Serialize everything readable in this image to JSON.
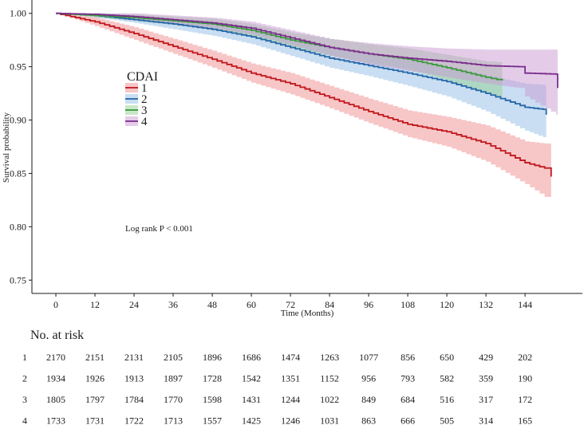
{
  "chart_data": {
    "type": "line",
    "xlabel": "Time (Months)",
    "ylabel": "Survival probability",
    "xlim": [
      -7.35,
      161.6
    ],
    "ylim": [
      0.7375,
      1.0125
    ],
    "xticks": [
      0,
      12,
      24,
      36,
      48,
      60,
      72,
      84,
      96,
      108,
      120,
      132,
      144
    ],
    "xtick_labels": [
      "0",
      "12",
      "24",
      "36",
      "48",
      "60",
      "72",
      "84",
      "96",
      "108",
      "120",
      "132",
      "144"
    ],
    "yticks": [
      0.75,
      0.8,
      0.85,
      0.9,
      0.95,
      1.0
    ],
    "ytick_labels": [
      "0.75",
      "0.80",
      "0.85",
      "0.90",
      "0.95",
      "1.00"
    ],
    "legend": {
      "title": "CDAI"
    },
    "annotation": "Log rank P < 0.001",
    "series": [
      {
        "name": "1",
        "color": "#c0171c",
        "band_color": "#ef8d90",
        "time": [
          0,
          12,
          24,
          36,
          48,
          60,
          72,
          84,
          96,
          108,
          120,
          132,
          144,
          150,
          152
        ],
        "survival": [
          1.0,
          0.992,
          0.981,
          0.969,
          0.957,
          0.944,
          0.934,
          0.921,
          0.908,
          0.896,
          0.889,
          0.878,
          0.86,
          0.855,
          0.847
        ],
        "lower": [
          1.0,
          0.988,
          0.975,
          0.962,
          0.949,
          0.935,
          0.924,
          0.911,
          0.897,
          0.884,
          0.875,
          0.861,
          0.84,
          0.828,
          0.818
        ],
        "upper": [
          1.0,
          0.996,
          0.987,
          0.976,
          0.965,
          0.953,
          0.944,
          0.932,
          0.92,
          0.909,
          0.903,
          0.895,
          0.88,
          0.878,
          0.876
        ]
      },
      {
        "name": "2",
        "color": "#2566a8",
        "band_color": "#93bde6",
        "time": [
          0,
          12,
          24,
          36,
          48,
          60,
          72,
          84,
          96,
          108,
          120,
          132,
          144,
          149.5,
          150.5
        ],
        "survival": [
          1.0,
          0.998,
          0.994,
          0.99,
          0.985,
          0.978,
          0.968,
          0.958,
          0.951,
          0.944,
          0.936,
          0.925,
          0.912,
          0.91,
          0.905
        ],
        "lower": [
          1.0,
          0.996,
          0.991,
          0.985,
          0.979,
          0.971,
          0.96,
          0.949,
          0.941,
          0.932,
          0.922,
          0.908,
          0.89,
          0.884,
          0.88
        ],
        "upper": [
          1.0,
          1.0,
          0.997,
          0.994,
          0.99,
          0.985,
          0.976,
          0.967,
          0.961,
          0.956,
          0.95,
          0.942,
          0.934,
          0.933,
          0.931
        ]
      },
      {
        "name": "3",
        "color": "#3c9a3c",
        "band_color": "#94d094",
        "time": [
          0,
          12,
          24,
          36,
          48,
          60,
          72,
          84,
          96,
          108,
          120,
          132,
          137
        ],
        "survival": [
          1.0,
          0.998,
          0.996,
          0.993,
          0.99,
          0.984,
          0.975,
          0.968,
          0.962,
          0.957,
          0.949,
          0.94,
          0.937
        ],
        "lower": [
          1.0,
          0.996,
          0.993,
          0.989,
          0.985,
          0.978,
          0.968,
          0.96,
          0.953,
          0.947,
          0.937,
          0.925,
          0.92
        ],
        "upper": [
          1.0,
          1.0,
          0.999,
          0.997,
          0.995,
          0.99,
          0.982,
          0.976,
          0.971,
          0.967,
          0.961,
          0.955,
          0.954
        ]
      },
      {
        "name": "4",
        "color": "#7a2d8c",
        "band_color": "#c99ad4",
        "time": [
          0,
          12,
          24,
          36,
          48,
          60,
          72,
          84,
          96,
          108,
          120,
          132,
          142,
          144,
          153.5,
          154
        ],
        "survival": [
          1.0,
          0.999,
          0.997,
          0.994,
          0.991,
          0.986,
          0.977,
          0.968,
          0.962,
          0.958,
          0.955,
          0.951,
          0.95,
          0.944,
          0.943,
          0.93
        ],
        "lower": [
          1.0,
          0.997,
          0.994,
          0.99,
          0.986,
          0.98,
          0.97,
          0.96,
          0.952,
          0.946,
          0.94,
          0.934,
          0.93,
          0.922,
          0.905,
          0.897
        ],
        "upper": [
          1.0,
          1.0,
          1.0,
          0.998,
          0.996,
          0.992,
          0.984,
          0.976,
          0.972,
          0.969,
          0.967,
          0.966,
          0.966,
          0.966,
          0.966,
          0.966
        ]
      }
    ],
    "risk_table": {
      "title": "No. at risk",
      "times": [
        0,
        12,
        24,
        36,
        48,
        60,
        72,
        84,
        96,
        108,
        120,
        132,
        144
      ],
      "rows": [
        {
          "label": "1",
          "values": [
            2170,
            2151,
            2131,
            2105,
            1896,
            1686,
            1474,
            1263,
            1077,
            856,
            650,
            429,
            202
          ]
        },
        {
          "label": "2",
          "values": [
            1934,
            1926,
            1913,
            1897,
            1728,
            1542,
            1351,
            1152,
            956,
            793,
            582,
            359,
            190
          ]
        },
        {
          "label": "3",
          "values": [
            1805,
            1797,
            1784,
            1770,
            1598,
            1431,
            1244,
            1022,
            849,
            684,
            516,
            317,
            172
          ]
        },
        {
          "label": "4",
          "values": [
            1733,
            1731,
            1722,
            1713,
            1557,
            1425,
            1246,
            1031,
            863,
            666,
            505,
            314,
            165
          ]
        }
      ]
    }
  }
}
